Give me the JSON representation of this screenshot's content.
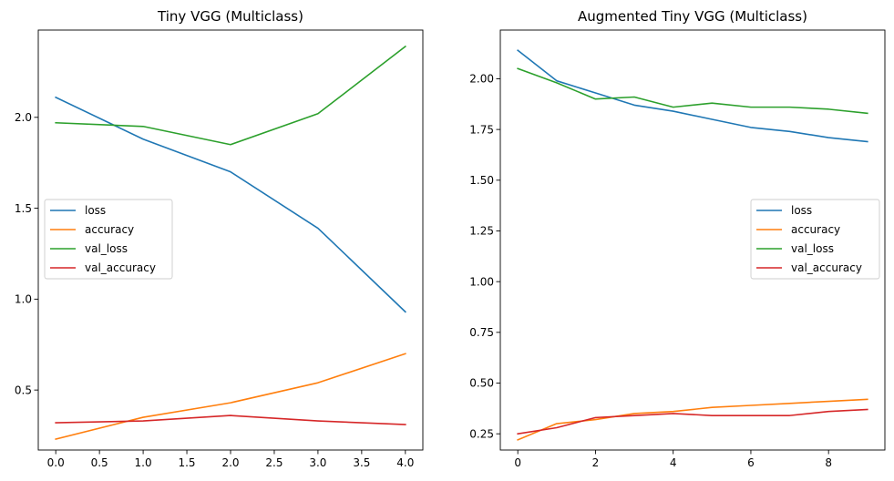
{
  "chart_data": [
    {
      "type": "line",
      "title": "Tiny VGG (Multiclass)",
      "xlabel": "",
      "ylabel": "",
      "xlim": [
        -0.2,
        4.2
      ],
      "ylim": [
        0.17,
        2.48
      ],
      "xticks": [
        0.0,
        0.5,
        1.0,
        1.5,
        2.0,
        2.5,
        3.0,
        3.5,
        4.0
      ],
      "xtick_labels": [
        "0.0",
        "0.5",
        "1.0",
        "1.5",
        "2.0",
        "2.5",
        "3.0",
        "3.5",
        "4.0"
      ],
      "yticks": [
        0.5,
        1.0,
        1.5,
        2.0
      ],
      "ytick_labels": [
        "0.5",
        "1.0",
        "1.5",
        "2.0"
      ],
      "grid": false,
      "legend_position": "center-left",
      "x": [
        0,
        1,
        2,
        3,
        4
      ],
      "series": [
        {
          "name": "loss",
          "color": "#1f77b4",
          "values": [
            2.11,
            1.88,
            1.7,
            1.39,
            0.93
          ]
        },
        {
          "name": "accuracy",
          "color": "#ff7f0e",
          "values": [
            0.23,
            0.35,
            0.43,
            0.54,
            0.7
          ]
        },
        {
          "name": "val_loss",
          "color": "#2ca02c",
          "values": [
            1.97,
            1.95,
            1.85,
            2.02,
            2.39
          ]
        },
        {
          "name": "val_accuracy",
          "color": "#d62728",
          "values": [
            0.32,
            0.33,
            0.36,
            0.33,
            0.31
          ]
        }
      ]
    },
    {
      "type": "line",
      "title": "Augmented Tiny VGG (Multiclass)",
      "xlabel": "",
      "ylabel": "",
      "xlim": [
        -0.45,
        9.45
      ],
      "ylim": [
        0.17,
        2.24
      ],
      "xticks": [
        0,
        2,
        4,
        6,
        8
      ],
      "xtick_labels": [
        "0",
        "2",
        "4",
        "6",
        "8"
      ],
      "yticks": [
        0.25,
        0.5,
        0.75,
        1.0,
        1.25,
        1.5,
        1.75,
        2.0
      ],
      "ytick_labels": [
        "0.25",
        "0.50",
        "0.75",
        "1.00",
        "1.25",
        "1.50",
        "1.75",
        "2.00"
      ],
      "grid": false,
      "legend_position": "center-right",
      "x": [
        0,
        1,
        2,
        3,
        4,
        5,
        6,
        7,
        8,
        9
      ],
      "series": [
        {
          "name": "loss",
          "color": "#1f77b4",
          "values": [
            2.14,
            1.99,
            1.93,
            1.87,
            1.84,
            1.8,
            1.76,
            1.74,
            1.71,
            1.69
          ]
        },
        {
          "name": "accuracy",
          "color": "#ff7f0e",
          "values": [
            0.22,
            0.3,
            0.32,
            0.35,
            0.36,
            0.38,
            0.39,
            0.4,
            0.41,
            0.42
          ]
        },
        {
          "name": "val_loss",
          "color": "#2ca02c",
          "values": [
            2.05,
            1.98,
            1.9,
            1.91,
            1.86,
            1.88,
            1.86,
            1.86,
            1.85,
            1.83
          ]
        },
        {
          "name": "val_accuracy",
          "color": "#d62728",
          "values": [
            0.25,
            0.28,
            0.33,
            0.34,
            0.35,
            0.34,
            0.34,
            0.34,
            0.36,
            0.37
          ]
        }
      ]
    }
  ]
}
